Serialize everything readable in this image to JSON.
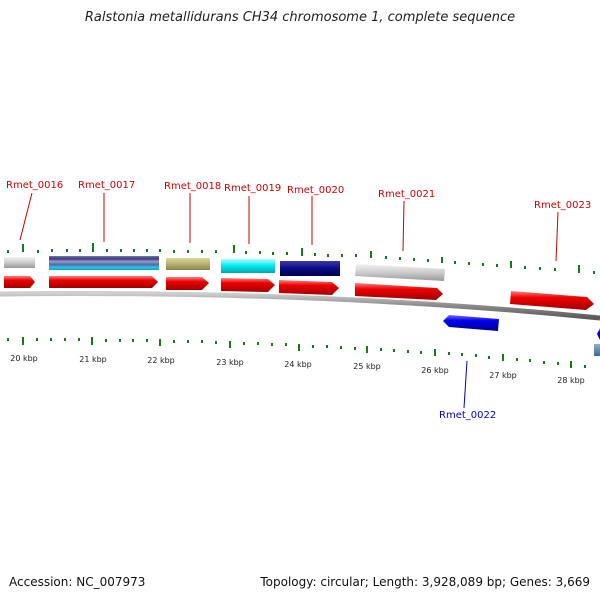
{
  "title": "Ralstonia metallidurans CH34 chromosome 1, complete sequence",
  "footer": {
    "accession": "Accession: NC_007973",
    "summary": "Topology: circular; Length: 3,928,089 bp; Genes: 3,669"
  },
  "colors": {
    "forward_label": "#cc0000",
    "reverse_label": "#0000cc",
    "tick": "#1a7a1a",
    "backbone": "#888888",
    "cds_forward": "#ee0000",
    "cds_reverse": "#0000ee"
  },
  "gene_labels": [
    {
      "text": "Rmet_0016",
      "strand": "forward"
    },
    {
      "text": "Rmet_0017",
      "strand": "forward"
    },
    {
      "text": "Rmet_0018",
      "strand": "forward"
    },
    {
      "text": "Rmet_0019",
      "strand": "forward"
    },
    {
      "text": "Rmet_0020",
      "strand": "forward"
    },
    {
      "text": "Rmet_0021",
      "strand": "forward"
    },
    {
      "text": "Rmet_0023",
      "strand": "forward"
    },
    {
      "text": "Rmet_0022",
      "strand": "reverse"
    }
  ],
  "scale_labels": [
    "20 kbp",
    "21 kbp",
    "22 kbp",
    "23 kbp",
    "24 kbp",
    "25 kbp",
    "26 kbp",
    "27 kbp",
    "28 kbp"
  ]
}
